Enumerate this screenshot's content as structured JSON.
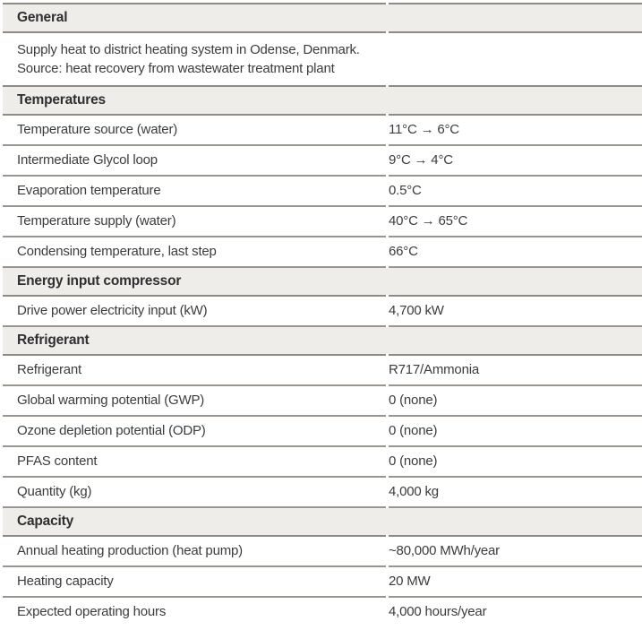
{
  "document": {
    "sections": [
      {
        "id": "general",
        "title": "General",
        "description": [
          "Supply heat to district heating system in Odense, Denmark.",
          "Source: heat recovery from wastewater treatment plant"
        ],
        "rows": []
      },
      {
        "id": "temperatures",
        "title": "Temperatures",
        "description": [],
        "rows": [
          {
            "label": "Temperature source (water)",
            "value": "11°C → 6°C"
          },
          {
            "label": "Intermediate Glycol loop",
            "value": "9°C → 4°C"
          },
          {
            "label": "Evaporation temperature",
            "value": "0.5°C"
          },
          {
            "label": "Temperature supply (water)",
            "value": "40°C → 65°C"
          },
          {
            "label": "Condensing temperature, last step",
            "value": "66°C"
          }
        ]
      },
      {
        "id": "energy-input-compressor",
        "title": "Energy input compressor",
        "description": [],
        "rows": [
          {
            "label": "Drive power electricity input (kW)",
            "value": "4,700 kW"
          }
        ]
      },
      {
        "id": "refrigerant",
        "title": "Refrigerant",
        "description": [],
        "rows": [
          {
            "label": "Refrigerant",
            "value": "R717/Ammonia"
          },
          {
            "label": "Global warming potential (GWP)",
            "value": "0 (none)"
          },
          {
            "label": "Ozone depletion potential (ODP)",
            "value": "0 (none)"
          },
          {
            "label": "PFAS content",
            "value": "0 (none)"
          },
          {
            "label": "Quantity (kg)",
            "value": "4,000 kg"
          }
        ]
      },
      {
        "id": "capacity",
        "title": "Capacity",
        "description": [],
        "rows": [
          {
            "label": "Annual heating production (heat pump)",
            "value": "~80,000 MWh/year"
          },
          {
            "label": "Heating capacity",
            "value": "20 MW"
          },
          {
            "label": "Expected operating hours",
            "value": "4,000 hours/year"
          }
        ]
      }
    ],
    "colors": {
      "header_background": "#eeedea",
      "divider": "#8f8a84",
      "row_divider": "#9b958f",
      "text": "#3c3c3e",
      "header_text": "#2f2f31"
    }
  }
}
